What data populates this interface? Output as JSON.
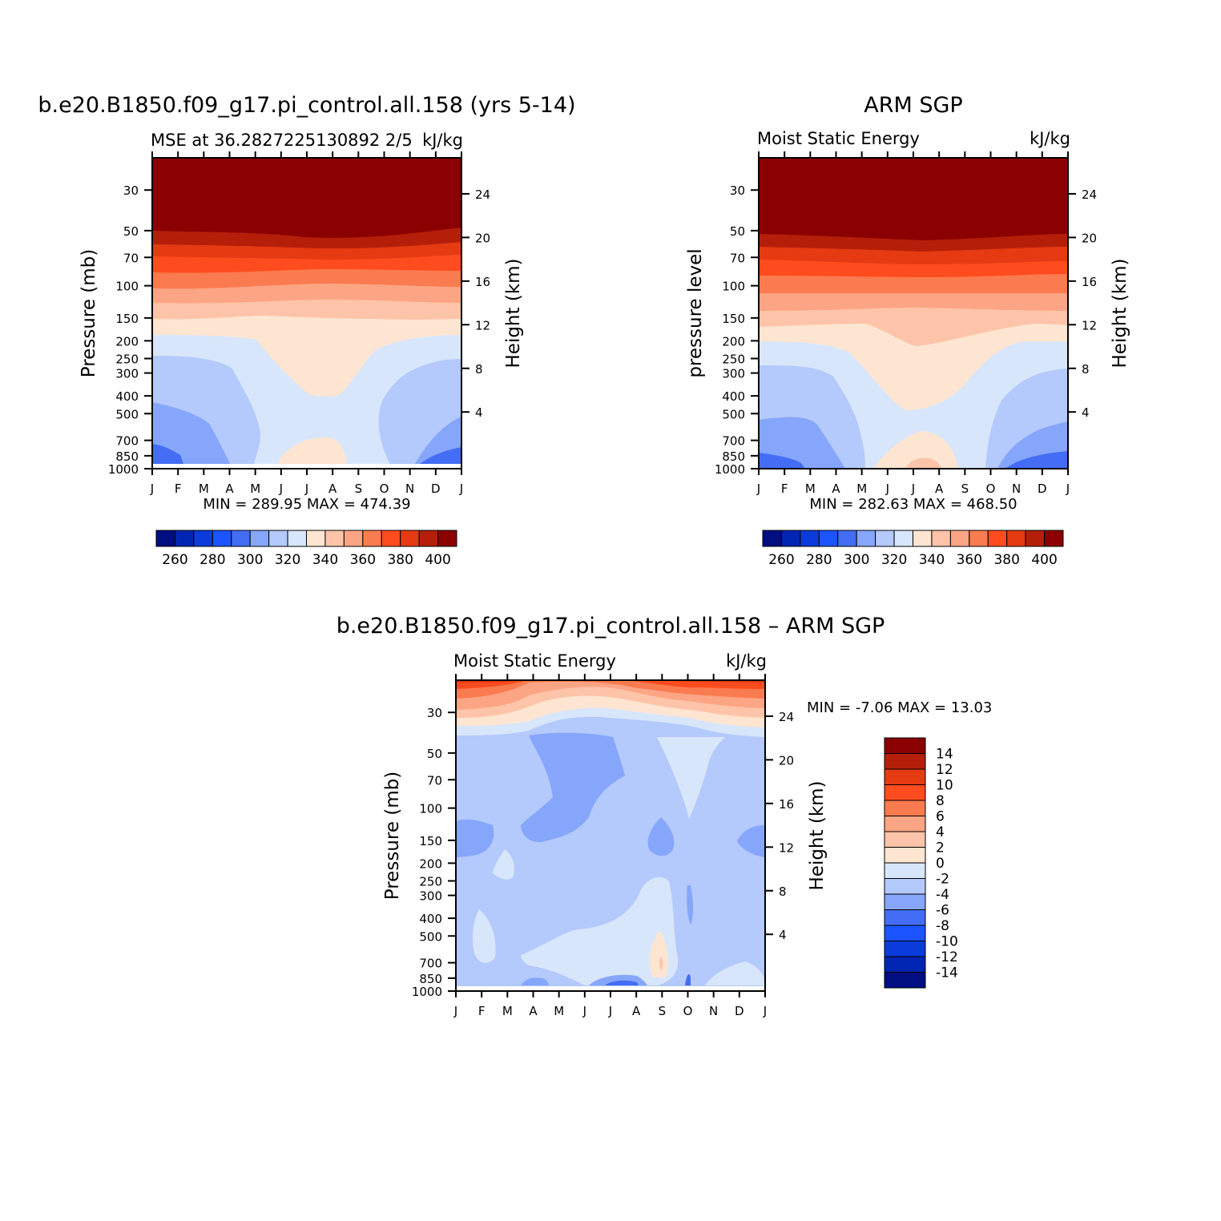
{
  "months": [
    "J",
    "F",
    "M",
    "A",
    "M",
    "J",
    "J",
    "A",
    "S",
    "O",
    "N",
    "D",
    "J"
  ],
  "pressure_ticks": [
    30,
    50,
    70,
    100,
    150,
    200,
    250,
    300,
    400,
    500,
    700,
    850,
    1000
  ],
  "height_ticks": [
    24,
    20,
    16,
    12,
    8,
    4
  ],
  "palette": {
    "levels_full": [
      "#000e82",
      "#0025b2",
      "#0b3cdb",
      "#1c55ff",
      "#436df5",
      "#85a6fa",
      "#b4c9fc",
      "#d8e6fb",
      "#fde5d1",
      "#fdc4a9",
      "#fca584",
      "#fa7b4f",
      "#ff4c1e",
      "#e53a12",
      "#b51f0a",
      "#8b0000"
    ],
    "diff_colors": [
      "#000e82",
      "#0025b2",
      "#0b3cdb",
      "#1c55ff",
      "#436df5",
      "#85a6fa",
      "#b4c9fc",
      "#d8e6fb",
      "#fde5d1",
      "#fdc4a9",
      "#fca584",
      "#fa7b4f",
      "#ff4c1e",
      "#e53a12",
      "#b51f0a",
      "#8b0000"
    ]
  },
  "chart_data": [
    {
      "type": "heatmap",
      "title": "b.e20.B1850.f09_g17.pi_control.all.158 (yrs 5-14)",
      "subtitle_left": "MSE at 36.2827225130892 2/5",
      "subtitle_right": "kJ/kg",
      "ylabel": "Pressure (mb)",
      "ylabel_right": "Height (km)",
      "min_max": "MIN = 289.95 MAX = 474.39",
      "colorbar_labels": [
        "260",
        "280",
        "300",
        "320",
        "340",
        "360",
        "380",
        "400"
      ],
      "x": [
        "J",
        "F",
        "M",
        "A",
        "M",
        "J",
        "J",
        "A",
        "S",
        "O",
        "N",
        "D",
        "J"
      ],
      "zlim": [
        289.95,
        474.39
      ]
    },
    {
      "type": "heatmap",
      "title": "ARM SGP",
      "subtitle_left": "Moist Static Energy",
      "subtitle_right": "kJ/kg",
      "ylabel": "pressure level",
      "ylabel_right": "Height (km)",
      "min_max": "MIN = 282.63 MAX = 468.50",
      "colorbar_labels": [
        "260",
        "280",
        "300",
        "320",
        "340",
        "360",
        "380",
        "400"
      ],
      "x": [
        "J",
        "F",
        "M",
        "A",
        "M",
        "J",
        "J",
        "A",
        "S",
        "O",
        "N",
        "D",
        "J"
      ],
      "zlim": [
        282.63,
        468.5
      ]
    },
    {
      "type": "heatmap",
      "title": "b.e20.B1850.f09_g17.pi_control.all.158 – ARM SGP",
      "subtitle_left": "Moist Static Energy",
      "subtitle_right": "kJ/kg",
      "ylabel": "Pressure (mb)",
      "ylabel_right": "Height (km)",
      "min_max": "MIN = -7.06 MAX = 13.03",
      "colorbar_labels": [
        "14",
        "12",
        "10",
        "8",
        "6",
        "4",
        "2",
        "0",
        "-2",
        "-4",
        "-6",
        "-8",
        "-10",
        "-12",
        "-14"
      ],
      "x": [
        "J",
        "F",
        "M",
        "A",
        "M",
        "J",
        "J",
        "A",
        "S",
        "O",
        "N",
        "D",
        "J"
      ],
      "zlim": [
        -7.06,
        13.03
      ]
    }
  ]
}
